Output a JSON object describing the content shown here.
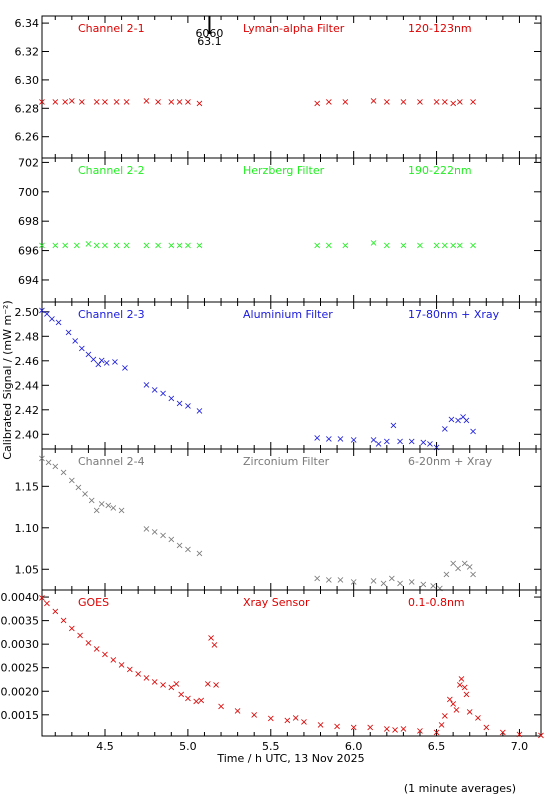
{
  "figure": {
    "ylabel": "Calibrated Signal / (mW m⁻²)",
    "xlabel": "Time / h UTC, 13 Nov 2025",
    "footnote": "(1 minute averages)",
    "marker": {
      "value_top": "6060",
      "value_bottom": "63.1",
      "x": 5.13
    }
  },
  "chart_data": [
    {
      "type": "scatter",
      "labels": [
        "Channel 2-1",
        "Lyman-alpha Filter",
        "120-123nm"
      ],
      "color": "#dd0000",
      "xlim": [
        4.12,
        7.13
      ],
      "ylim": [
        6.245,
        6.345
      ],
      "yticks": [
        6.26,
        6.28,
        6.3,
        6.32,
        6.34
      ],
      "ytick_labels": [
        "6.26",
        "6.28",
        "6.30",
        "6.32",
        "6.34"
      ],
      "series": [
        {
          "points": [
            [
              4.12,
              6.285
            ],
            [
              4.2,
              6.285
            ],
            [
              4.26,
              6.285
            ],
            [
              4.3,
              6.286
            ],
            [
              4.36,
              6.285
            ],
            [
              4.45,
              6.285
            ],
            [
              4.5,
              6.285
            ],
            [
              4.57,
              6.285
            ],
            [
              4.63,
              6.285
            ],
            [
              4.75,
              6.286
            ],
            [
              4.82,
              6.285
            ],
            [
              4.9,
              6.285
            ],
            [
              4.95,
              6.285
            ],
            [
              5.0,
              6.285
            ],
            [
              5.07,
              6.284
            ],
            [
              5.78,
              6.284
            ],
            [
              5.85,
              6.285
            ],
            [
              5.95,
              6.285
            ],
            [
              6.12,
              6.286
            ],
            [
              6.2,
              6.285
            ],
            [
              6.3,
              6.285
            ],
            [
              6.4,
              6.285
            ],
            [
              6.5,
              6.285
            ],
            [
              6.55,
              6.285
            ],
            [
              6.6,
              6.284
            ],
            [
              6.64,
              6.285
            ],
            [
              6.72,
              6.285
            ]
          ]
        }
      ]
    },
    {
      "type": "scatter",
      "labels": [
        "Channel 2-2",
        "Herzberg Filter",
        "190-222nm"
      ],
      "color": "#22ee22",
      "xlim": [
        4.12,
        7.13
      ],
      "ylim": [
        692.5,
        702.3
      ],
      "yticks": [
        694,
        696,
        698,
        700,
        702
      ],
      "ytick_labels": [
        "694",
        "696",
        "698",
        "700",
        "702"
      ],
      "series": [
        {
          "points": [
            [
              4.12,
              696.4
            ],
            [
              4.2,
              696.4
            ],
            [
              4.26,
              696.4
            ],
            [
              4.33,
              696.4
            ],
            [
              4.4,
              696.5
            ],
            [
              4.45,
              696.4
            ],
            [
              4.5,
              696.4
            ],
            [
              4.57,
              696.4
            ],
            [
              4.63,
              696.4
            ],
            [
              4.75,
              696.4
            ],
            [
              4.82,
              696.4
            ],
            [
              4.9,
              696.4
            ],
            [
              4.95,
              696.4
            ],
            [
              5.0,
              696.4
            ],
            [
              5.07,
              696.4
            ],
            [
              5.78,
              696.4
            ],
            [
              5.85,
              696.4
            ],
            [
              5.95,
              696.4
            ],
            [
              6.12,
              696.6
            ],
            [
              6.2,
              696.4
            ],
            [
              6.3,
              696.4
            ],
            [
              6.4,
              696.4
            ],
            [
              6.5,
              696.4
            ],
            [
              6.55,
              696.4
            ],
            [
              6.6,
              696.4
            ],
            [
              6.64,
              696.4
            ],
            [
              6.72,
              696.4
            ]
          ]
        }
      ]
    },
    {
      "type": "scatter",
      "labels": [
        "Channel 2-3",
        "Aluminium Filter",
        "17-80nm + Xray"
      ],
      "color": "#1a1adc",
      "xlim": [
        4.12,
        7.13
      ],
      "ylim": [
        2.388,
        2.508
      ],
      "yticks": [
        2.4,
        2.42,
        2.44,
        2.46,
        2.48,
        2.5
      ],
      "ytick_labels": [
        "2.40",
        "2.42",
        "2.44",
        "2.46",
        "2.48",
        "2.50"
      ],
      "series": [
        {
          "points": [
            [
              4.12,
              2.502
            ],
            [
              4.15,
              2.499
            ],
            [
              4.18,
              2.495
            ],
            [
              4.22,
              2.492
            ],
            [
              4.28,
              2.484
            ],
            [
              4.32,
              2.477
            ],
            [
              4.36,
              2.471
            ],
            [
              4.4,
              2.466
            ],
            [
              4.43,
              2.462
            ],
            [
              4.46,
              2.458
            ],
            [
              4.48,
              2.461
            ],
            [
              4.51,
              2.459
            ],
            [
              4.56,
              2.46
            ],
            [
              4.62,
              2.455
            ],
            [
              4.75,
              2.441
            ],
            [
              4.8,
              2.437
            ],
            [
              4.85,
              2.434
            ],
            [
              4.9,
              2.43
            ],
            [
              4.95,
              2.426
            ],
            [
              5.0,
              2.424
            ],
            [
              5.07,
              2.42
            ],
            [
              5.78,
              2.398
            ],
            [
              5.85,
              2.397
            ],
            [
              5.92,
              2.397
            ],
            [
              6.0,
              2.396
            ],
            [
              6.12,
              2.396
            ],
            [
              6.15,
              2.393
            ],
            [
              6.2,
              2.395
            ],
            [
              6.24,
              2.408
            ],
            [
              6.28,
              2.395
            ],
            [
              6.35,
              2.395
            ],
            [
              6.42,
              2.394
            ],
            [
              6.46,
              2.393
            ],
            [
              6.5,
              2.39
            ],
            [
              6.55,
              2.405
            ],
            [
              6.59,
              2.413
            ],
            [
              6.63,
              2.412
            ],
            [
              6.66,
              2.415
            ],
            [
              6.68,
              2.412
            ],
            [
              6.72,
              2.403
            ]
          ]
        }
      ]
    },
    {
      "type": "scatter",
      "labels": [
        "Channel 2-4",
        "Zirconium Filter",
        "6-20nm + Xray"
      ],
      "color": "#7a7a7a",
      "xlim": [
        4.12,
        7.13
      ],
      "ylim": [
        1.025,
        1.195
      ],
      "yticks": [
        1.05,
        1.1,
        1.15
      ],
      "ytick_labels": [
        "1.05",
        "1.10",
        "1.15"
      ],
      "series": [
        {
          "points": [
            [
              4.12,
              1.185
            ],
            [
              4.16,
              1.18
            ],
            [
              4.2,
              1.175
            ],
            [
              4.25,
              1.168
            ],
            [
              4.3,
              1.158
            ],
            [
              4.34,
              1.15
            ],
            [
              4.38,
              1.142
            ],
            [
              4.42,
              1.134
            ],
            [
              4.45,
              1.122
            ],
            [
              4.48,
              1.13
            ],
            [
              4.52,
              1.128
            ],
            [
              4.55,
              1.125
            ],
            [
              4.6,
              1.122
            ],
            [
              4.75,
              1.1
            ],
            [
              4.8,
              1.096
            ],
            [
              4.85,
              1.092
            ],
            [
              4.9,
              1.087
            ],
            [
              4.95,
              1.08
            ],
            [
              5.0,
              1.075
            ],
            [
              5.07,
              1.07
            ],
            [
              5.78,
              1.04
            ],
            [
              5.85,
              1.038
            ],
            [
              5.92,
              1.038
            ],
            [
              6.0,
              1.036
            ],
            [
              6.12,
              1.037
            ],
            [
              6.18,
              1.034
            ],
            [
              6.23,
              1.04
            ],
            [
              6.28,
              1.034
            ],
            [
              6.35,
              1.036
            ],
            [
              6.42,
              1.033
            ],
            [
              6.48,
              1.031
            ],
            [
              6.52,
              1.028
            ],
            [
              6.56,
              1.045
            ],
            [
              6.6,
              1.058
            ],
            [
              6.63,
              1.052
            ],
            [
              6.67,
              1.058
            ],
            [
              6.7,
              1.054
            ],
            [
              6.72,
              1.045
            ]
          ]
        }
      ]
    },
    {
      "type": "scatter",
      "labels": [
        "GOES",
        "Xray Sensor",
        "0.1-0.8nm"
      ],
      "color": "#dd0000",
      "xlim": [
        4.12,
        7.13
      ],
      "ylim": [
        0.00105,
        0.00415
      ],
      "yticks": [
        0.0015,
        0.002,
        0.0025,
        0.003,
        0.0035,
        0.004
      ],
      "ytick_labels": [
        "0.0015",
        "0.0020",
        "0.0025",
        "0.0030",
        "0.0035",
        "0.0040"
      ],
      "series": [
        {
          "points": [
            [
              4.12,
              0.004
            ],
            [
              4.15,
              0.00388
            ],
            [
              4.2,
              0.00371
            ],
            [
              4.25,
              0.00352
            ],
            [
              4.3,
              0.00335
            ],
            [
              4.35,
              0.0032
            ],
            [
              4.4,
              0.00305
            ],
            [
              4.45,
              0.00292
            ],
            [
              4.5,
              0.0028
            ],
            [
              4.55,
              0.00269
            ],
            [
              4.6,
              0.00258
            ],
            [
              4.65,
              0.00248
            ],
            [
              4.7,
              0.00239
            ],
            [
              4.75,
              0.0023
            ],
            [
              4.8,
              0.00222
            ],
            [
              4.85,
              0.00215
            ],
            [
              4.9,
              0.0021
            ],
            [
              4.93,
              0.00218
            ],
            [
              4.96,
              0.00195
            ],
            [
              5.0,
              0.00187
            ],
            [
              5.05,
              0.0018
            ],
            [
              5.08,
              0.00183
            ],
            [
              5.12,
              0.00218
            ],
            [
              5.14,
              0.00315
            ],
            [
              5.16,
              0.003
            ],
            [
              5.17,
              0.00215
            ],
            [
              5.2,
              0.0017
            ],
            [
              5.3,
              0.0016
            ],
            [
              5.4,
              0.00152
            ],
            [
              5.5,
              0.00144
            ],
            [
              5.6,
              0.0014
            ],
            [
              5.65,
              0.00145
            ],
            [
              5.7,
              0.00137
            ],
            [
              5.8,
              0.0013
            ],
            [
              5.9,
              0.00127
            ],
            [
              6.0,
              0.00125
            ],
            [
              6.1,
              0.00125
            ],
            [
              6.2,
              0.00122
            ],
            [
              6.25,
              0.0012
            ],
            [
              6.3,
              0.00122
            ],
            [
              6.4,
              0.00118
            ],
            [
              6.5,
              0.00115
            ],
            [
              6.53,
              0.0013
            ],
            [
              6.55,
              0.0015
            ],
            [
              6.58,
              0.00185
            ],
            [
              6.6,
              0.00175
            ],
            [
              6.62,
              0.00162
            ],
            [
              6.64,
              0.00215
            ],
            [
              6.65,
              0.00228
            ],
            [
              6.67,
              0.0021
            ],
            [
              6.68,
              0.00195
            ],
            [
              6.7,
              0.00158
            ],
            [
              6.75,
              0.00145
            ],
            [
              6.8,
              0.00125
            ],
            [
              6.9,
              0.00115
            ],
            [
              7.0,
              0.0011
            ],
            [
              7.13,
              0.00108
            ]
          ]
        }
      ]
    }
  ],
  "xaxis": {
    "ticks": [
      4.5,
      5.0,
      5.5,
      6.0,
      6.5,
      7.0
    ],
    "tick_labels": [
      "4.5",
      "5.0",
      "5.5",
      "6.0",
      "6.5",
      "7.0"
    ],
    "minor_step": 0.1
  }
}
